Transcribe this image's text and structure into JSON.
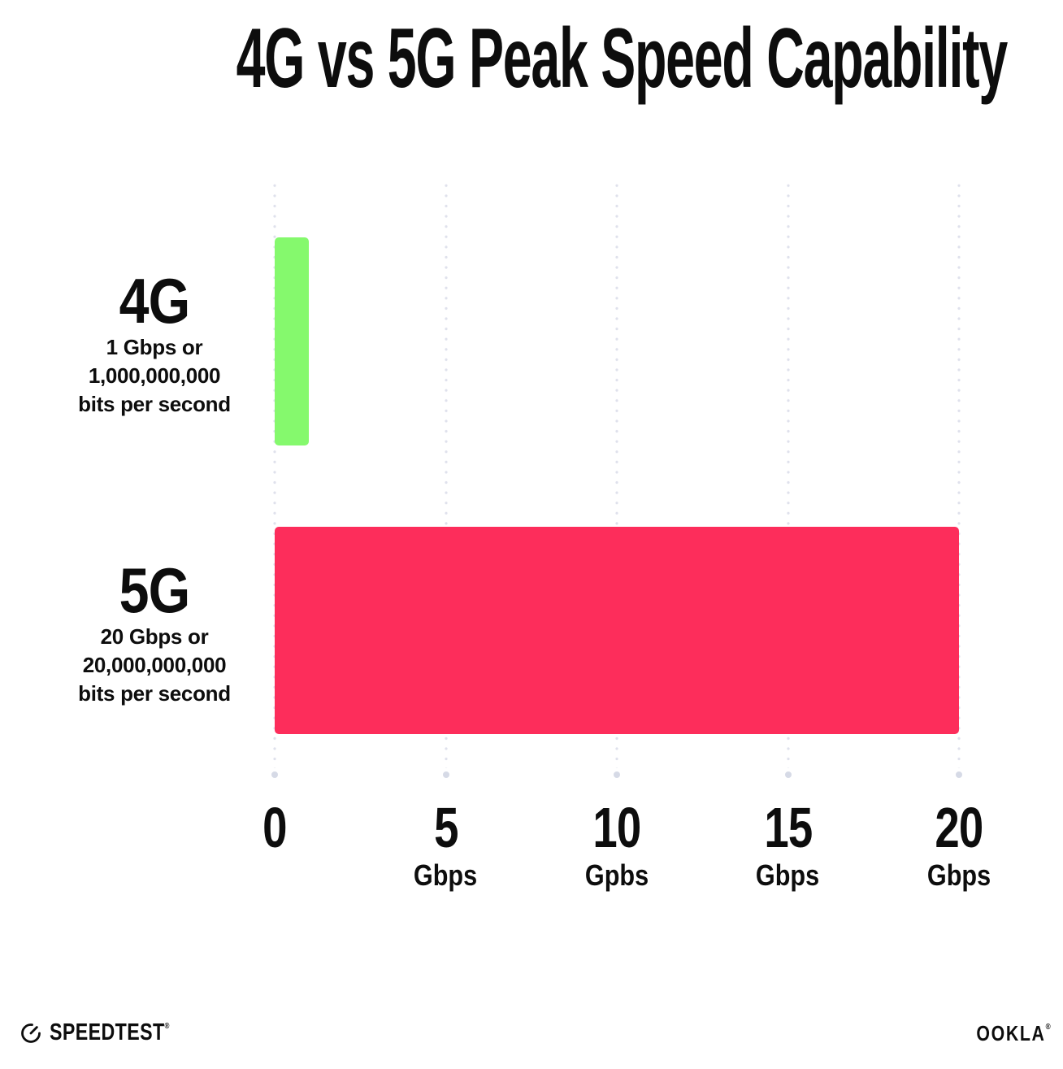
{
  "title": "4G vs 5G Peak Speed Capability",
  "colors": {
    "bar_4g_green": "#85F96D",
    "bar_5g_pink": "#FD2D5B",
    "grid_dot": "#DFE1EC",
    "grid_end_dot": "#D6DAE6",
    "text": "#0D0D0D"
  },
  "chart_data": {
    "type": "bar",
    "orientation": "horizontal",
    "title": "4G vs 5G Peak Speed Capability",
    "categories": [
      "4G",
      "5G"
    ],
    "values": [
      1,
      20
    ],
    "value_unit": "Gbps",
    "xlim": [
      0,
      20
    ],
    "bar_colors": [
      "#85F96D",
      "#FD2D5B"
    ],
    "grid": "vertical dotted gridlines at 0, 5, 10, 15, 20 with round end dot",
    "legend_position": "none",
    "rows": [
      {
        "name": "4G",
        "value": 1,
        "color": "#85F96D",
        "desc_line1": "1 Gbps or",
        "desc_line2": "1,000,000,000",
        "desc_line3": "bits per second"
      },
      {
        "name": "5G",
        "value": 20,
        "color": "#FD2D5B",
        "desc_line1": "20 Gbps or",
        "desc_line2": "20,000,000,000",
        "desc_line3": "bits per second"
      }
    ],
    "x_ticks": [
      {
        "value": "0",
        "unit": ""
      },
      {
        "value": "5",
        "unit": "Gbps"
      },
      {
        "value": "10",
        "unit": "Gpbs"
      },
      {
        "value": "15",
        "unit": "Gbps"
      },
      {
        "value": "20",
        "unit": "Gbps"
      }
    ]
  },
  "footer": {
    "speedtest_wordmark": "SPEEDTEST",
    "speedtest_reg": "®",
    "ookla_wordmark": "OOKLA",
    "ookla_reg": "®"
  }
}
